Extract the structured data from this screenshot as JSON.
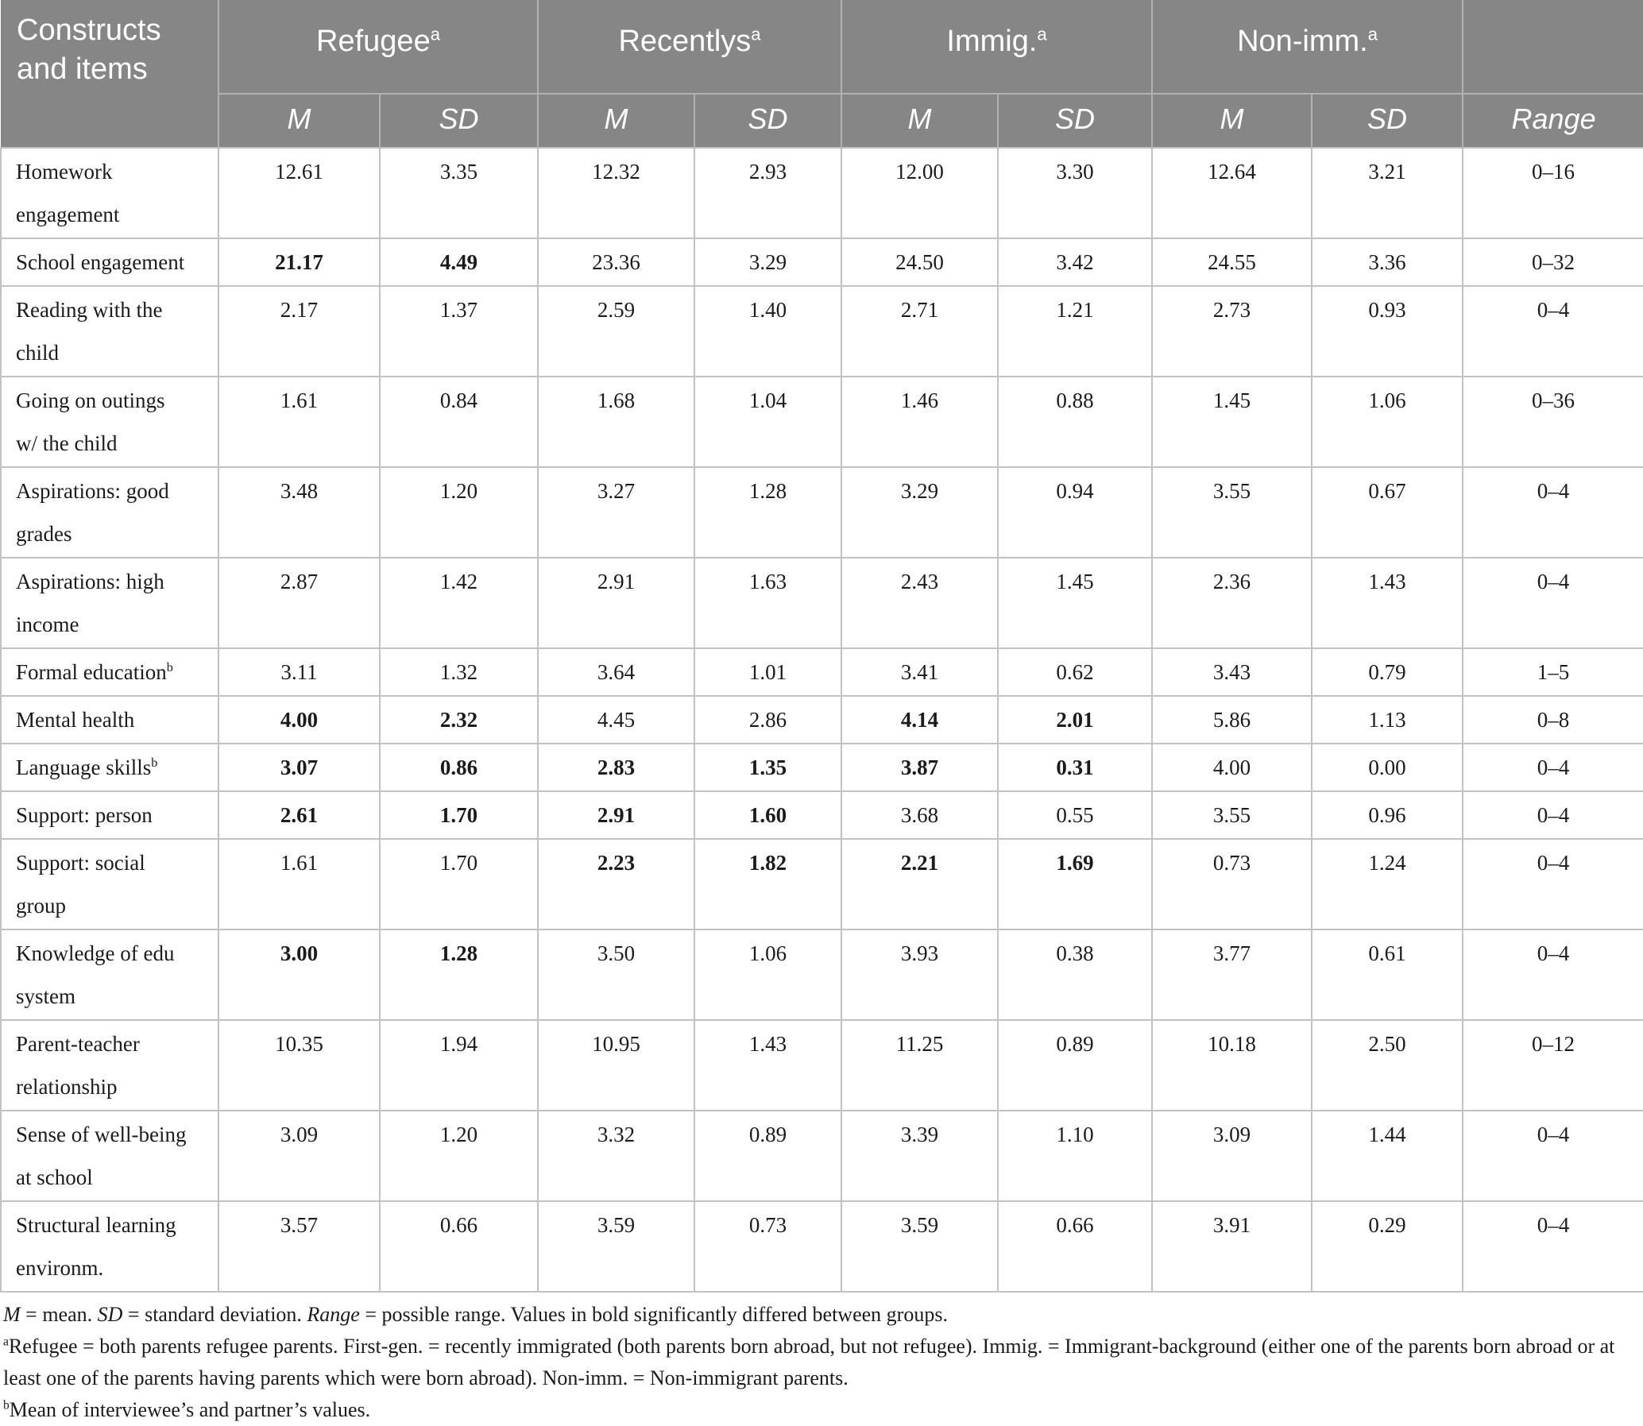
{
  "colors": {
    "header_bg": "#868686",
    "header_text": "#ffffff",
    "header_divider": "#b2b2b2",
    "body_border": "#c2c2c2",
    "text": "#1b1b1b"
  },
  "table": {
    "corner_header": "Constructs\nand items",
    "groups": [
      {
        "label": "Refugee",
        "sup": "a"
      },
      {
        "label": "Recentlys",
        "sup": "a"
      },
      {
        "label": "Immig.",
        "sup": "a"
      },
      {
        "label": "Non-imm.",
        "sup": "a"
      }
    ],
    "subheaders": {
      "m": "M",
      "sd": "SD",
      "range": "Range"
    },
    "rows": [
      {
        "label": "Homework\nengagement",
        "sup": "",
        "values": [
          "12.61",
          "3.35",
          "12.32",
          "2.93",
          "12.00",
          "3.30",
          "12.64",
          "3.21"
        ],
        "bold": [],
        "range": "0–16"
      },
      {
        "label": "School engagement",
        "sup": "",
        "values": [
          "21.17",
          "4.49",
          "23.36",
          "3.29",
          "24.50",
          "3.42",
          "24.55",
          "3.36"
        ],
        "bold": [
          0,
          1
        ],
        "range": "0–32"
      },
      {
        "label": "Reading with the\nchild",
        "sup": "",
        "values": [
          "2.17",
          "1.37",
          "2.59",
          "1.40",
          "2.71",
          "1.21",
          "2.73",
          "0.93"
        ],
        "bold": [],
        "range": "0–4"
      },
      {
        "label": "Going on outings\nw/ the child",
        "sup": "",
        "values": [
          "1.61",
          "0.84",
          "1.68",
          "1.04",
          "1.46",
          "0.88",
          "1.45",
          "1.06"
        ],
        "bold": [],
        "range": "0–36"
      },
      {
        "label": "Aspirations: good\ngrades",
        "sup": "",
        "values": [
          "3.48",
          "1.20",
          "3.27",
          "1.28",
          "3.29",
          "0.94",
          "3.55",
          "0.67"
        ],
        "bold": [],
        "range": "0–4"
      },
      {
        "label": "Aspirations: high\nincome",
        "sup": "",
        "values": [
          "2.87",
          "1.42",
          "2.91",
          "1.63",
          "2.43",
          "1.45",
          "2.36",
          "1.43"
        ],
        "bold": [],
        "range": "0–4"
      },
      {
        "label": "Formal education",
        "sup": "b",
        "values": [
          "3.11",
          "1.32",
          "3.64",
          "1.01",
          "3.41",
          "0.62",
          "3.43",
          "0.79"
        ],
        "bold": [],
        "range": "1–5"
      },
      {
        "label": "Mental health",
        "sup": "",
        "values": [
          "4.00",
          "2.32",
          "4.45",
          "2.86",
          "4.14",
          "2.01",
          "5.86",
          "1.13"
        ],
        "bold": [
          0,
          1,
          4,
          5
        ],
        "range": "0–8"
      },
      {
        "label": "Language skills",
        "sup": "b",
        "values": [
          "3.07",
          "0.86",
          "2.83",
          "1.35",
          "3.87",
          "0.31",
          "4.00",
          "0.00"
        ],
        "bold": [
          0,
          1,
          2,
          3,
          4,
          5
        ],
        "range": "0–4"
      },
      {
        "label": "Support: person",
        "sup": "",
        "values": [
          "2.61",
          "1.70",
          "2.91",
          "1.60",
          "3.68",
          "0.55",
          "3.55",
          "0.96"
        ],
        "bold": [
          0,
          1,
          2,
          3
        ],
        "range": "0–4"
      },
      {
        "label": "Support: social\ngroup",
        "sup": "",
        "values": [
          "1.61",
          "1.70",
          "2.23",
          "1.82",
          "2.21",
          "1.69",
          "0.73",
          "1.24"
        ],
        "bold": [
          2,
          3,
          4,
          5
        ],
        "range": "0–4"
      },
      {
        "label": "Knowledge of edu\nsystem",
        "sup": "",
        "values": [
          "3.00",
          "1.28",
          "3.50",
          "1.06",
          "3.93",
          "0.38",
          "3.77",
          "0.61"
        ],
        "bold": [
          0,
          1
        ],
        "range": "0–4"
      },
      {
        "label": "Parent-teacher\nrelationship",
        "sup": "",
        "values": [
          "10.35",
          "1.94",
          "10.95",
          "1.43",
          "11.25",
          "0.89",
          "10.18",
          "2.50"
        ],
        "bold": [],
        "range": "0–12"
      },
      {
        "label": "Sense of well-being\nat school",
        "sup": "",
        "values": [
          "3.09",
          "1.20",
          "3.32",
          "0.89",
          "3.39",
          "1.10",
          "3.09",
          "1.44"
        ],
        "bold": [],
        "range": "0–4"
      },
      {
        "label": "Structural learning\nenvironm.",
        "sup": "",
        "values": [
          "3.57",
          "0.66",
          "3.59",
          "0.73",
          "3.59",
          "0.66",
          "3.91",
          "0.29"
        ],
        "bold": [],
        "range": "0–4"
      }
    ]
  },
  "footnotes": {
    "general": [
      {
        "t": "M",
        "i": true
      },
      {
        "t": " = mean. "
      },
      {
        "t": "SD",
        "i": true
      },
      {
        "t": " = standard deviation. "
      },
      {
        "t": "Range",
        "i": true
      },
      {
        "t": " = possible range. Values in bold significantly differed between groups."
      }
    ],
    "a": {
      "sup": "a",
      "text": "Refugee = both parents refugee parents. First-gen. = recently immigrated (both parents born abroad, but not refugee). Immig. = Immigrant-background (either one of the parents born abroad or at least one of the parents having parents which were born abroad). Non-imm. = Non-immigrant parents."
    },
    "b": {
      "sup": "b",
      "text": "Mean of interviewee’s and partner’s values."
    }
  }
}
